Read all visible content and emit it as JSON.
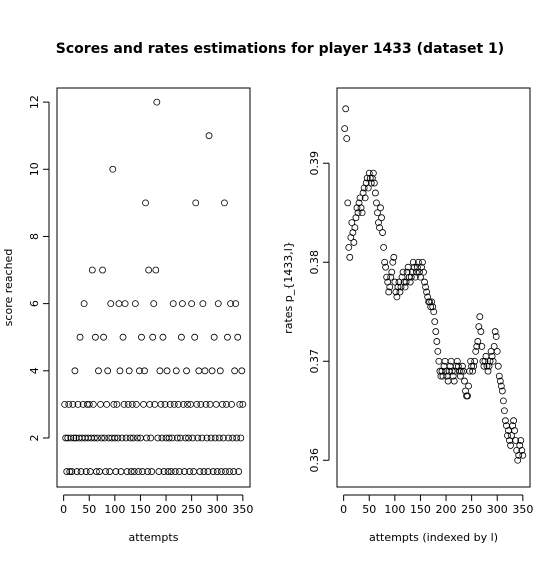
{
  "title": "Scores and rates estimations for player 1433 (dataset 1)",
  "chart_data": [
    {
      "type": "scatter",
      "x_label": "attempts",
      "y_label": "score reached",
      "xlim": [
        -13,
        364
      ],
      "xticks": [
        0,
        50,
        100,
        150,
        200,
        250,
        300,
        350
      ],
      "ylim": [
        0.54,
        12.42
      ],
      "yticks": [
        2,
        4,
        6,
        8,
        10,
        12
      ],
      "color": "#000000",
      "x": [
        2,
        4,
        6,
        8,
        10,
        12,
        14,
        16,
        18,
        20,
        22,
        24,
        26,
        28,
        30,
        32,
        34,
        36,
        38,
        40,
        42,
        44,
        46,
        48,
        50,
        52,
        54,
        56,
        58,
        60,
        62,
        64,
        66,
        68,
        70,
        72,
        74,
        76,
        78,
        80,
        82,
        84,
        86,
        88,
        90,
        92,
        94,
        96,
        98,
        100,
        102,
        104,
        106,
        108,
        110,
        112,
        114,
        116,
        118,
        120,
        122,
        124,
        126,
        128,
        130,
        132,
        134,
        136,
        138,
        140,
        142,
        144,
        146,
        148,
        150,
        152,
        154,
        156,
        158,
        160,
        162,
        164,
        166,
        168,
        170,
        172,
        174,
        176,
        178,
        180,
        182,
        184,
        186,
        188,
        190,
        192,
        194,
        196,
        198,
        200,
        202,
        204,
        206,
        208,
        210,
        212,
        214,
        216,
        218,
        220,
        222,
        224,
        226,
        228,
        230,
        232,
        234,
        236,
        238,
        240,
        242,
        244,
        246,
        248,
        250,
        252,
        254,
        256,
        258,
        260,
        262,
        264,
        266,
        268,
        270,
        272,
        274,
        276,
        278,
        280,
        282,
        284,
        286,
        288,
        290,
        292,
        294,
        296,
        298,
        300,
        302,
        304,
        306,
        308,
        310,
        312,
        314,
        316,
        318,
        320,
        322,
        324,
        326,
        328,
        330,
        332,
        334,
        336,
        338,
        340,
        342,
        344,
        346,
        348,
        350
      ],
      "values": [
        3,
        2,
        1,
        2,
        3,
        1,
        2,
        1,
        3,
        2,
        4,
        2,
        1,
        3,
        2,
        5,
        1,
        2,
        3,
        6,
        2,
        1,
        3,
        2,
        3,
        1,
        2,
        7,
        3,
        2,
        5,
        1,
        2,
        4,
        1,
        3,
        2,
        7,
        5,
        2,
        1,
        3,
        4,
        2,
        1,
        6,
        2,
        10,
        3,
        2,
        1,
        3,
        2,
        6,
        4,
        1,
        2,
        5,
        3,
        6,
        2,
        1,
        3,
        4,
        2,
        1,
        3,
        2,
        1,
        6,
        3,
        2,
        1,
        4,
        2,
        5,
        1,
        3,
        4,
        9,
        2,
        1,
        7,
        3,
        2,
        1,
        5,
        6,
        3,
        7,
        12,
        2,
        1,
        4,
        3,
        2,
        5,
        1,
        3,
        2,
        4,
        1,
        2,
        3,
        1,
        2,
        6,
        3,
        1,
        4,
        2,
        3,
        1,
        2,
        5,
        6,
        3,
        1,
        2,
        4,
        3,
        2,
        1,
        3,
        6,
        2,
        1,
        5,
        9,
        3,
        2,
        4,
        1,
        3,
        2,
        6,
        1,
        4,
        3,
        2,
        1,
        11,
        3,
        2,
        4,
        1,
        5,
        2,
        3,
        1,
        6,
        2,
        4,
        1,
        3,
        2,
        9,
        1,
        3,
        5,
        2,
        1,
        6,
        3,
        2,
        1,
        4,
        6,
        2,
        5,
        1,
        3,
        2,
        4,
        3
      ]
    },
    {
      "type": "scatter",
      "x_label": "attempts (indexed by l)",
      "y_label": "rates p_{1433,l}",
      "xlim": [
        -13,
        364
      ],
      "xticks": [
        0,
        50,
        100,
        150,
        200,
        250,
        300,
        350
      ],
      "ylim": [
        0.3573,
        0.3976
      ],
      "yticks": [
        0.36,
        0.37,
        0.38,
        0.39
      ],
      "color": "#000000",
      "x": [
        2,
        4,
        6,
        8,
        10,
        12,
        14,
        16,
        18,
        20,
        22,
        24,
        26,
        28,
        30,
        32,
        34,
        36,
        38,
        40,
        42,
        44,
        46,
        48,
        50,
        52,
        54,
        56,
        58,
        60,
        62,
        64,
        66,
        68,
        70,
        72,
        74,
        76,
        78,
        80,
        82,
        84,
        86,
        88,
        90,
        92,
        94,
        96,
        98,
        100,
        102,
        104,
        106,
        108,
        110,
        112,
        114,
        116,
        118,
        120,
        122,
        124,
        126,
        128,
        130,
        132,
        134,
        136,
        138,
        140,
        142,
        144,
        146,
        148,
        150,
        152,
        154,
        156,
        158,
        160,
        162,
        164,
        166,
        168,
        170,
        172,
        174,
        176,
        178,
        180,
        182,
        184,
        186,
        188,
        190,
        192,
        194,
        196,
        198,
        200,
        202,
        204,
        206,
        208,
        210,
        212,
        214,
        216,
        218,
        220,
        222,
        224,
        226,
        228,
        230,
        232,
        234,
        236,
        238,
        240,
        242,
        244,
        246,
        248,
        250,
        252,
        254,
        256,
        258,
        260,
        262,
        264,
        266,
        268,
        270,
        272,
        274,
        276,
        278,
        280,
        282,
        284,
        286,
        288,
        290,
        292,
        294,
        296,
        298,
        300,
        302,
        304,
        306,
        308,
        310,
        312,
        314,
        316,
        318,
        320,
        322,
        324,
        326,
        328,
        330,
        332,
        334,
        336,
        338,
        340,
        342,
        344,
        346,
        348,
        350
      ],
      "values": [
        0.3935,
        0.3955,
        0.3925,
        0.386,
        0.3815,
        0.3805,
        0.3825,
        0.384,
        0.383,
        0.382,
        0.3835,
        0.3845,
        0.3855,
        0.385,
        0.386,
        0.3865,
        0.3855,
        0.385,
        0.387,
        0.3875,
        0.3865,
        0.388,
        0.3885,
        0.3875,
        0.389,
        0.3885,
        0.388,
        0.3885,
        0.389,
        0.388,
        0.387,
        0.386,
        0.385,
        0.384,
        0.3835,
        0.3855,
        0.3845,
        0.383,
        0.3815,
        0.38,
        0.3795,
        0.3785,
        0.378,
        0.377,
        0.3775,
        0.3785,
        0.379,
        0.38,
        0.3805,
        0.378,
        0.377,
        0.3765,
        0.3775,
        0.378,
        0.377,
        0.3775,
        0.3785,
        0.379,
        0.378,
        0.3775,
        0.378,
        0.379,
        0.3795,
        0.3785,
        0.378,
        0.3785,
        0.379,
        0.38,
        0.3795,
        0.3785,
        0.379,
        0.3795,
        0.38,
        0.379,
        0.3785,
        0.3795,
        0.38,
        0.379,
        0.378,
        0.3775,
        0.377,
        0.3765,
        0.376,
        0.376,
        0.3755,
        0.376,
        0.3755,
        0.375,
        0.374,
        0.373,
        0.372,
        0.371,
        0.37,
        0.369,
        0.3685,
        0.369,
        0.3685,
        0.3695,
        0.37,
        0.369,
        0.3685,
        0.368,
        0.369,
        0.3695,
        0.37,
        0.369,
        0.3685,
        0.368,
        0.369,
        0.3695,
        0.37,
        0.3695,
        0.369,
        0.3685,
        0.369,
        0.3695,
        0.369,
        0.368,
        0.367,
        0.3665,
        0.3665,
        0.3675,
        0.369,
        0.37,
        0.3695,
        0.369,
        0.3695,
        0.37,
        0.371,
        0.3715,
        0.372,
        0.3735,
        0.3745,
        0.373,
        0.3715,
        0.37,
        0.3695,
        0.37,
        0.3705,
        0.3695,
        0.369,
        0.3695,
        0.37,
        0.371,
        0.3705,
        0.37,
        0.3715,
        0.373,
        0.3725,
        0.371,
        0.3695,
        0.3685,
        0.368,
        0.3675,
        0.367,
        0.366,
        0.365,
        0.364,
        0.3635,
        0.3625,
        0.363,
        0.362,
        0.3615,
        0.3625,
        0.3635,
        0.364,
        0.363,
        0.362,
        0.361,
        0.36,
        0.3605,
        0.3615,
        0.362,
        0.361,
        0.3605
      ]
    }
  ]
}
